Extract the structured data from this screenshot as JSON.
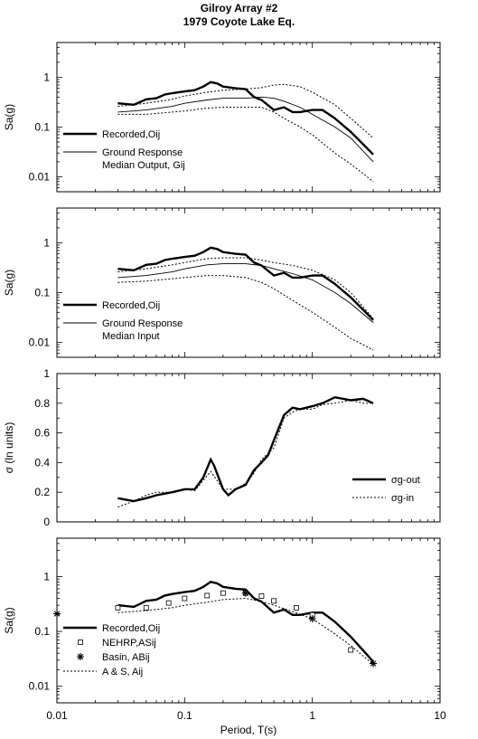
{
  "title": {
    "line1": "Gilroy Array #2",
    "line2": "1979 Coyote Lake Eq."
  },
  "x_axis": {
    "label": "Period, T(s)",
    "ticks": [
      "0.01",
      "0.1",
      "1",
      "10"
    ],
    "range": [
      0.01,
      10
    ],
    "scale": "log"
  },
  "chart_data": [
    {
      "type": "line",
      "ylabel": "Sa(g)",
      "yscale": "log",
      "ylim": [
        0.005,
        5
      ],
      "yticks": [
        "1",
        "0.1",
        "0.01"
      ],
      "legend": [
        {
          "lines": [
            "Recorded,Oij"
          ],
          "style": "thick"
        },
        {
          "lines": [
            "Ground Response",
            "Median Output, Gij"
          ],
          "style": "thin"
        }
      ],
      "series": [
        {
          "name": "Recorded,Oij",
          "style": "thick",
          "x": [
            0.03,
            0.04,
            0.05,
            0.06,
            0.07,
            0.08,
            0.1,
            0.12,
            0.14,
            0.16,
            0.18,
            0.2,
            0.25,
            0.3,
            0.35,
            0.4,
            0.5,
            0.6,
            0.7,
            0.8,
            1.0,
            1.2,
            1.5,
            2.0,
            2.5,
            3.0
          ],
          "y": [
            0.3,
            0.28,
            0.36,
            0.38,
            0.45,
            0.48,
            0.52,
            0.55,
            0.65,
            0.8,
            0.75,
            0.65,
            0.6,
            0.58,
            0.4,
            0.35,
            0.22,
            0.25,
            0.2,
            0.2,
            0.22,
            0.22,
            0.15,
            0.08,
            0.045,
            0.028
          ]
        },
        {
          "name": "Ground Response Median Output, Gij",
          "style": "thin",
          "x": [
            0.03,
            0.05,
            0.08,
            0.1,
            0.15,
            0.2,
            0.3,
            0.4,
            0.5,
            0.6,
            0.8,
            1.0,
            1.5,
            2.0,
            3.0
          ],
          "y": [
            0.2,
            0.22,
            0.26,
            0.3,
            0.35,
            0.38,
            0.38,
            0.4,
            0.38,
            0.33,
            0.25,
            0.18,
            0.1,
            0.06,
            0.02
          ]
        },
        {
          "name": "upper band",
          "style": "dotted",
          "x": [
            0.03,
            0.05,
            0.08,
            0.1,
            0.15,
            0.2,
            0.3,
            0.4,
            0.5,
            0.6,
            0.8,
            1.0,
            1.5,
            2.0,
            3.0
          ],
          "y": [
            0.26,
            0.3,
            0.36,
            0.42,
            0.5,
            0.55,
            0.58,
            0.62,
            0.7,
            0.72,
            0.65,
            0.5,
            0.28,
            0.15,
            0.06
          ]
        },
        {
          "name": "lower band",
          "style": "dotted",
          "x": [
            0.03,
            0.05,
            0.08,
            0.1,
            0.15,
            0.2,
            0.3,
            0.4,
            0.5,
            0.6,
            0.8,
            1.0,
            1.5,
            2.0,
            3.0
          ],
          "y": [
            0.18,
            0.18,
            0.2,
            0.21,
            0.24,
            0.25,
            0.25,
            0.25,
            0.2,
            0.15,
            0.1,
            0.07,
            0.03,
            0.018,
            0.008
          ]
        }
      ]
    },
    {
      "type": "line",
      "ylabel": "Sa(g)",
      "yscale": "log",
      "ylim": [
        0.005,
        5
      ],
      "yticks": [
        "1",
        "0.1",
        "0.01"
      ],
      "legend": [
        {
          "lines": [
            "Recorded,Oij"
          ],
          "style": "thick"
        },
        {
          "lines": [
            "Ground Response",
            "Median Input"
          ],
          "style": "thin"
        }
      ],
      "series": [
        {
          "name": "Recorded,Oij",
          "style": "thick",
          "x": [
            0.03,
            0.04,
            0.05,
            0.06,
            0.07,
            0.08,
            0.1,
            0.12,
            0.14,
            0.16,
            0.18,
            0.2,
            0.25,
            0.3,
            0.35,
            0.4,
            0.5,
            0.6,
            0.7,
            0.8,
            1.0,
            1.2,
            1.5,
            2.0,
            2.5,
            3.0
          ],
          "y": [
            0.3,
            0.28,
            0.36,
            0.38,
            0.45,
            0.48,
            0.52,
            0.55,
            0.65,
            0.8,
            0.75,
            0.65,
            0.6,
            0.58,
            0.4,
            0.35,
            0.22,
            0.25,
            0.2,
            0.2,
            0.22,
            0.22,
            0.15,
            0.08,
            0.045,
            0.028
          ]
        },
        {
          "name": "Ground Response Median Input",
          "style": "thin",
          "x": [
            0.03,
            0.05,
            0.08,
            0.1,
            0.15,
            0.2,
            0.3,
            0.4,
            0.5,
            0.7,
            1.0,
            1.5,
            2.0,
            3.0
          ],
          "y": [
            0.2,
            0.22,
            0.26,
            0.3,
            0.36,
            0.38,
            0.38,
            0.35,
            0.3,
            0.24,
            0.18,
            0.1,
            0.06,
            0.025
          ]
        },
        {
          "name": "upper band",
          "style": "dotted",
          "x": [
            0.03,
            0.05,
            0.08,
            0.1,
            0.15,
            0.2,
            0.3,
            0.4,
            0.5,
            0.7,
            1.0,
            1.5,
            2.0,
            3.0
          ],
          "y": [
            0.26,
            0.3,
            0.36,
            0.4,
            0.48,
            0.5,
            0.5,
            0.45,
            0.4,
            0.35,
            0.28,
            0.18,
            0.1,
            0.03
          ]
        },
        {
          "name": "lower band",
          "style": "dotted",
          "x": [
            0.03,
            0.05,
            0.08,
            0.1,
            0.15,
            0.2,
            0.3,
            0.4,
            0.5,
            0.7,
            1.0,
            1.5,
            2.0,
            3.0
          ],
          "y": [
            0.16,
            0.17,
            0.19,
            0.2,
            0.22,
            0.22,
            0.2,
            0.16,
            0.12,
            0.07,
            0.04,
            0.02,
            0.012,
            0.007
          ]
        }
      ]
    },
    {
      "type": "line",
      "ylabel": "σ (ln units)",
      "yscale": "linear",
      "ylim": [
        0,
        1
      ],
      "yticks": [
        "1",
        "0.8",
        "0.6",
        "0.4",
        "0.2",
        "0"
      ],
      "legend": [
        {
          "lines": [
            "σg-out"
          ],
          "style": "thick"
        },
        {
          "lines": [
            "σg-in"
          ],
          "style": "dotted"
        }
      ],
      "series": [
        {
          "name": "σg-out",
          "style": "thick",
          "x": [
            0.03,
            0.04,
            0.05,
            0.06,
            0.08,
            0.1,
            0.12,
            0.14,
            0.16,
            0.17,
            0.2,
            0.22,
            0.25,
            0.3,
            0.35,
            0.4,
            0.45,
            0.5,
            0.6,
            0.7,
            0.8,
            1.0,
            1.2,
            1.5,
            2.0,
            2.5,
            3.0
          ],
          "y": [
            0.16,
            0.14,
            0.16,
            0.18,
            0.2,
            0.22,
            0.22,
            0.3,
            0.42,
            0.38,
            0.22,
            0.18,
            0.22,
            0.25,
            0.35,
            0.4,
            0.45,
            0.55,
            0.72,
            0.77,
            0.76,
            0.78,
            0.8,
            0.84,
            0.82,
            0.83,
            0.8
          ]
        },
        {
          "name": "σg-in",
          "style": "dotted",
          "x": [
            0.03,
            0.04,
            0.05,
            0.06,
            0.08,
            0.1,
            0.12,
            0.14,
            0.16,
            0.2,
            0.25,
            0.3,
            0.35,
            0.4,
            0.5,
            0.6,
            0.7,
            0.8,
            1.0,
            1.2,
            1.5,
            2.0,
            2.5,
            3.0
          ],
          "y": [
            0.1,
            0.14,
            0.18,
            0.2,
            0.2,
            0.22,
            0.21,
            0.28,
            0.34,
            0.22,
            0.22,
            0.26,
            0.33,
            0.42,
            0.5,
            0.7,
            0.74,
            0.76,
            0.76,
            0.79,
            0.8,
            0.82,
            0.8,
            0.8
          ]
        }
      ]
    },
    {
      "type": "line",
      "ylabel": "Sa(g)",
      "yscale": "log",
      "ylim": [
        0.005,
        5
      ],
      "yticks": [
        "1",
        "0.1",
        "0.01"
      ],
      "legend": [
        {
          "lines": [
            "Recorded,Oij"
          ],
          "style": "thick"
        },
        {
          "lines": [
            "NEHRP,ASij"
          ],
          "style": "square"
        },
        {
          "lines": [
            "Basin, ABij"
          ],
          "style": "star"
        },
        {
          "lines": [
            "A & S, Aij"
          ],
          "style": "dotted"
        }
      ],
      "series": [
        {
          "name": "Recorded,Oij",
          "style": "thick",
          "x": [
            0.03,
            0.04,
            0.05,
            0.06,
            0.07,
            0.08,
            0.1,
            0.12,
            0.14,
            0.16,
            0.18,
            0.2,
            0.25,
            0.3,
            0.35,
            0.4,
            0.5,
            0.6,
            0.7,
            0.8,
            1.0,
            1.2,
            1.5,
            2.0,
            2.5,
            3.0
          ],
          "y": [
            0.3,
            0.28,
            0.36,
            0.38,
            0.45,
            0.48,
            0.52,
            0.55,
            0.65,
            0.8,
            0.75,
            0.65,
            0.6,
            0.58,
            0.4,
            0.35,
            0.22,
            0.25,
            0.2,
            0.2,
            0.22,
            0.22,
            0.15,
            0.08,
            0.045,
            0.028
          ]
        },
        {
          "name": "NEHRP,ASij",
          "style": "square",
          "x": [
            0.03,
            0.05,
            0.075,
            0.1,
            0.15,
            0.2,
            0.3,
            0.4,
            0.5,
            0.75,
            1.0,
            2.0
          ],
          "y": [
            0.27,
            0.27,
            0.33,
            0.4,
            0.45,
            0.5,
            0.5,
            0.44,
            0.36,
            0.27,
            0.2,
            0.046
          ]
        },
        {
          "name": "Basin, ABij",
          "style": "star",
          "x": [
            0.01,
            0.3,
            1.0,
            3.0
          ],
          "y": [
            0.21,
            0.5,
            0.17,
            0.026
          ]
        },
        {
          "name": "A & S, Aij",
          "style": "dotted",
          "x": [
            0.03,
            0.05,
            0.08,
            0.1,
            0.15,
            0.2,
            0.3,
            0.4,
            0.5,
            0.7,
            1.0,
            1.5,
            2.0,
            3.0
          ],
          "y": [
            0.22,
            0.24,
            0.27,
            0.3,
            0.34,
            0.38,
            0.4,
            0.35,
            0.3,
            0.23,
            0.17,
            0.09,
            0.055,
            0.025
          ]
        }
      ]
    }
  ]
}
